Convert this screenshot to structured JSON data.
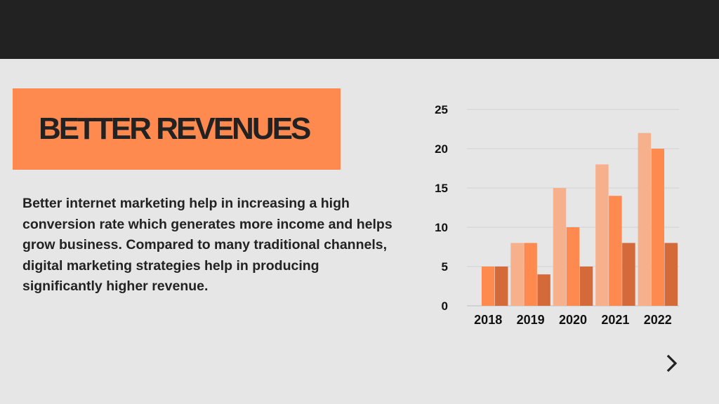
{
  "slide": {
    "title": "BETTER REVENUES",
    "body": "Better internet marketing help in increasing a high conversion rate which generates more income and helps grow business. Compared to many traditional channels, digital marketing strategies help in producing significantly higher revenue."
  },
  "colors": {
    "topbar": "#222222",
    "background": "#e6e6e6",
    "accent": "#ff8a4f",
    "series": [
      "#f7b08c",
      "#ff8a4f",
      "#d4693a"
    ]
  },
  "navigation": {
    "next_icon": "chevron-right-icon"
  },
  "chart_data": {
    "type": "bar",
    "categories": [
      "2018",
      "2019",
      "2020",
      "2021",
      "2022"
    ],
    "series": [
      {
        "values": [
          0,
          8,
          15,
          18,
          22
        ]
      },
      {
        "values": [
          5,
          8,
          10,
          14,
          20
        ]
      },
      {
        "values": [
          5,
          4,
          5,
          8,
          8
        ]
      }
    ],
    "yticks": [
      "0",
      "5",
      "10",
      "15",
      "20",
      "25"
    ],
    "ylim": [
      0,
      25
    ],
    "grid": true,
    "legend": "none"
  }
}
